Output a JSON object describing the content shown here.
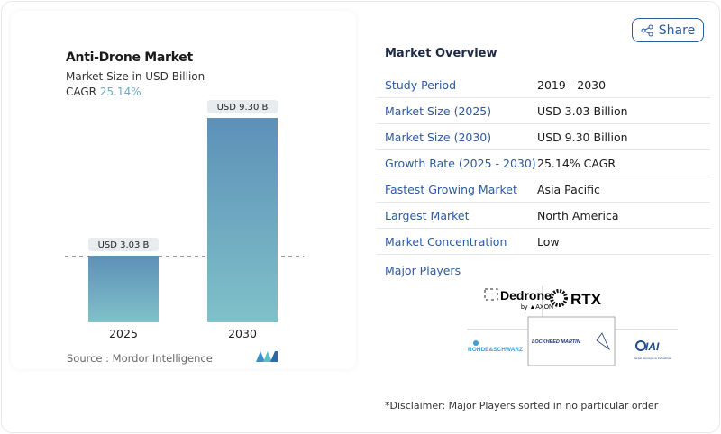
{
  "share_label": "Share",
  "chart_data": {
    "type": "bar",
    "title": "Anti-Drone Market",
    "subtitle": "Market Size in USD Billion",
    "cagr_label": "CAGR",
    "cagr_value": "25.14%",
    "categories": [
      "2025",
      "2030"
    ],
    "values": [
      3.03,
      9.3
    ],
    "data_labels": [
      "USD 3.03 B",
      "USD 9.30 B"
    ],
    "bar_color_top": "#5e90b8",
    "bar_color_bottom": "#7fc1c9",
    "source": "Source :  Mordor Intelligence"
  },
  "overview": {
    "title": "Market Overview",
    "rows": [
      {
        "label": "Study Period",
        "value": "2019 - 2030"
      },
      {
        "label": "Market Size (2025)",
        "value": "USD 3.03 Billion"
      },
      {
        "label": "Market Size (2030)",
        "value": "USD 9.30 Billion"
      },
      {
        "label": "Growth Rate (2025 - 2030)",
        "value": "25.14% CAGR"
      },
      {
        "label": "Fastest Growing Market",
        "value": "Asia Pacific"
      },
      {
        "label": "Largest Market",
        "value": "North America"
      },
      {
        "label": "Market Concentration",
        "value": "Low"
      }
    ],
    "major_players_label": "Major Players",
    "players": [
      "Dedrone by AXON",
      "RTX",
      "Rohde & Schwarz",
      "Lockheed Martin",
      "IAI"
    ],
    "disclaimer": "*Disclaimer: Major Players sorted in no particular order"
  }
}
